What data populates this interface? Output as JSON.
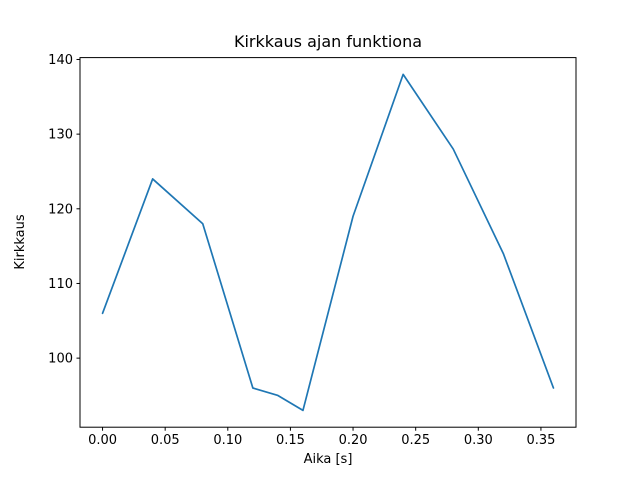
{
  "figure": {
    "background": "#ffffff"
  },
  "chart_data": {
    "type": "line",
    "title": "Kirkkaus ajan funktiona",
    "xlabel": "Aika [s]",
    "ylabel": "Kirkkaus",
    "x": [
      0.0,
      0.04,
      0.08,
      0.12,
      0.14,
      0.16,
      0.2,
      0.24,
      0.28,
      0.32,
      0.36
    ],
    "y": [
      106,
      124,
      118,
      96,
      95,
      93,
      119,
      138,
      128,
      114,
      96
    ],
    "xlim": [
      -0.018,
      0.378
    ],
    "ylim": [
      90.75,
      140.25
    ],
    "xticks": [
      "0.00",
      "0.05",
      "0.10",
      "0.15",
      "0.20",
      "0.25",
      "0.30",
      "0.35"
    ],
    "yticks": [
      "100",
      "110",
      "120",
      "130",
      "140"
    ],
    "line_color": "#1f77b4",
    "grid": false,
    "legend_position": "none"
  }
}
